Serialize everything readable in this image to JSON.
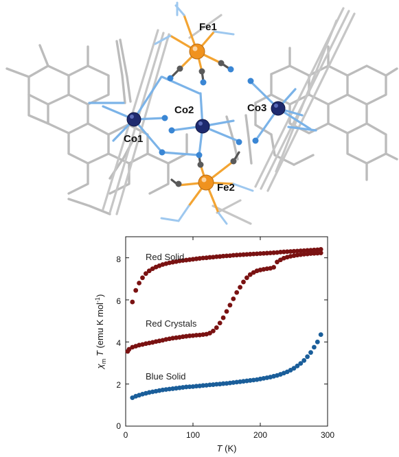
{
  "structure": {
    "atom_labels": [
      "Fe1",
      "Co2",
      "Co3",
      "Co1",
      "Fe2"
    ],
    "colors": {
      "iron": "#f0921e",
      "cobalt": "#1e2a6e",
      "nitrogen": "#3a86d4",
      "carbon": "#4a4a4a",
      "ligand": "#b8b8b8",
      "cyanide_bond": "#f3a432",
      "nitrogen_bond": "#7bb3e8"
    }
  },
  "chart_data": {
    "type": "scatter",
    "title": "",
    "xlabel": "T (K)",
    "xlabel_main": "T",
    "xlabel_unit": " (K)",
    "ylabel": "χm T (emu K mol-1)",
    "ylabel_chi": "χ",
    "ylabel_sub": "m",
    "ylabel_T": " T",
    "ylabel_unit": " (emu K mol",
    "ylabel_sup": "-1",
    "ylabel_close": ")",
    "xlim": [
      0,
      300
    ],
    "ylim": [
      0,
      9
    ],
    "xticks": [
      "0",
      "100",
      "200",
      "300"
    ],
    "yticks": [
      "0",
      "2",
      "4",
      "6",
      "8"
    ],
    "grid": false,
    "series": [
      {
        "name": "Red Solid",
        "color": "#7a1212",
        "x": [
          10,
          15,
          20,
          25,
          30,
          35,
          40,
          45,
          50,
          55,
          60,
          65,
          70,
          75,
          80,
          85,
          90,
          95,
          100,
          105,
          110,
          115,
          120,
          125,
          130,
          135,
          140,
          145,
          150,
          155,
          160,
          165,
          170,
          175,
          180,
          185,
          190,
          195,
          200,
          205,
          210,
          215,
          220,
          225,
          230,
          235,
          240,
          245,
          250,
          255,
          260,
          265,
          270,
          275,
          280,
          285,
          290
        ],
        "y": [
          5.9,
          6.45,
          6.8,
          7.05,
          7.25,
          7.38,
          7.48,
          7.56,
          7.62,
          7.68,
          7.72,
          7.76,
          7.79,
          7.82,
          7.85,
          7.87,
          7.89,
          7.91,
          7.93,
          7.95,
          7.97,
          7.99,
          8.0,
          8.02,
          8.03,
          8.05,
          8.06,
          8.08,
          8.09,
          8.1,
          8.12,
          8.13,
          8.14,
          8.15,
          8.16,
          8.17,
          8.18,
          8.19,
          8.2,
          8.21,
          8.22,
          8.23,
          8.24,
          8.25,
          8.27,
          8.28,
          8.29,
          8.3,
          8.31,
          8.32,
          8.33,
          8.34,
          8.35,
          8.36,
          8.37,
          8.38,
          8.4
        ]
      },
      {
        "name": "Red Crystals",
        "color": "#7a1212",
        "x": [
          3,
          5,
          10,
          15,
          20,
          25,
          30,
          35,
          40,
          45,
          50,
          55,
          60,
          65,
          70,
          75,
          80,
          85,
          90,
          95,
          100,
          105,
          110,
          115,
          120,
          125,
          130,
          135,
          140,
          145,
          150,
          155,
          160,
          165,
          170,
          175,
          180,
          185,
          190,
          195,
          200,
          205,
          210,
          215,
          220,
          225,
          230,
          235,
          240,
          245,
          250,
          255,
          260,
          265,
          270,
          275,
          280,
          285,
          290
        ],
        "y": [
          3.55,
          3.65,
          3.75,
          3.8,
          3.85,
          3.88,
          3.92,
          3.95,
          3.98,
          4.02,
          4.05,
          4.08,
          4.12,
          4.15,
          4.18,
          4.2,
          4.22,
          4.25,
          4.27,
          4.29,
          4.3,
          4.32,
          4.33,
          4.35,
          4.37,
          4.42,
          4.52,
          4.68,
          4.9,
          5.15,
          5.45,
          5.75,
          6.05,
          6.35,
          6.6,
          6.85,
          7.05,
          7.2,
          7.3,
          7.38,
          7.42,
          7.45,
          7.48,
          7.5,
          7.55,
          7.8,
          7.9,
          7.98,
          8.03,
          8.07,
          8.1,
          8.13,
          8.15,
          8.17,
          8.18,
          8.2,
          8.21,
          8.22,
          8.23
        ]
      },
      {
        "name": "Blue Solid",
        "color": "#1a5e9a",
        "x": [
          10,
          15,
          20,
          25,
          30,
          35,
          40,
          45,
          50,
          55,
          60,
          65,
          70,
          75,
          80,
          85,
          90,
          95,
          100,
          105,
          110,
          115,
          120,
          125,
          130,
          135,
          140,
          145,
          150,
          155,
          160,
          165,
          170,
          175,
          180,
          185,
          190,
          195,
          200,
          205,
          210,
          215,
          220,
          225,
          230,
          235,
          240,
          245,
          250,
          255,
          260,
          265,
          270,
          275,
          280,
          285,
          290
        ],
        "y": [
          1.35,
          1.42,
          1.47,
          1.52,
          1.56,
          1.6,
          1.63,
          1.66,
          1.69,
          1.72,
          1.74,
          1.76,
          1.78,
          1.8,
          1.82,
          1.84,
          1.86,
          1.87,
          1.88,
          1.9,
          1.91,
          1.93,
          1.94,
          1.96,
          1.97,
          1.99,
          2.0,
          2.02,
          2.03,
          2.05,
          2.07,
          2.09,
          2.11,
          2.13,
          2.15,
          2.17,
          2.19,
          2.21,
          2.24,
          2.27,
          2.3,
          2.33,
          2.37,
          2.41,
          2.46,
          2.52,
          2.58,
          2.66,
          2.75,
          2.86,
          2.98,
          3.12,
          3.3,
          3.5,
          3.75,
          4.0,
          4.35
        ]
      }
    ]
  }
}
